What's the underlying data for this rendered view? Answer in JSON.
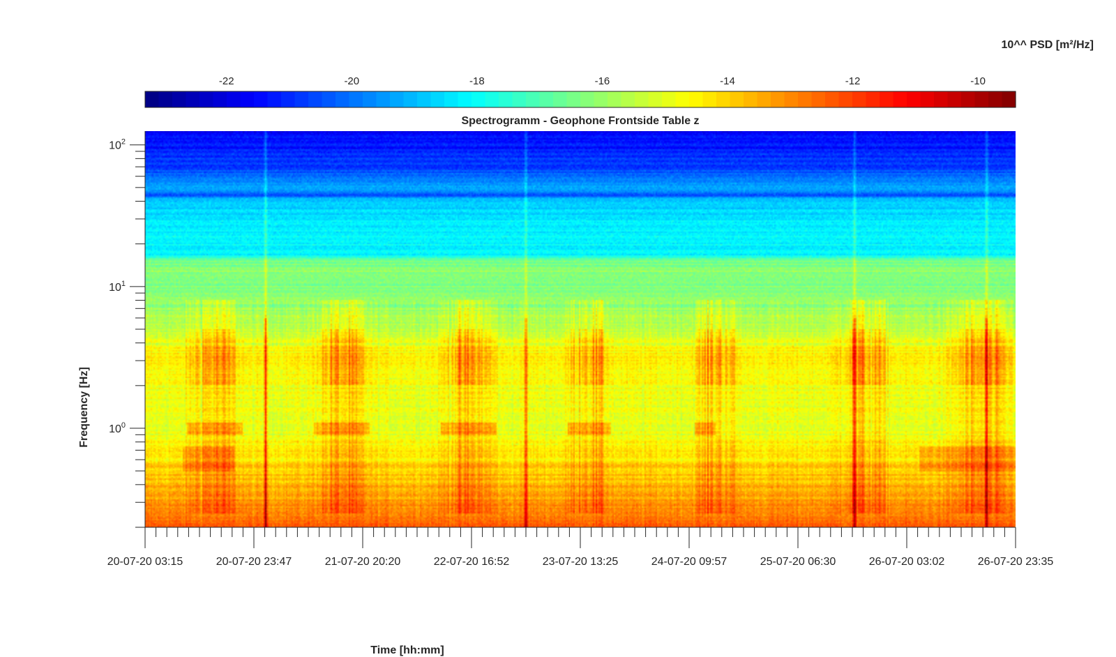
{
  "chart_data": {
    "type": "heatmap",
    "title": "Spectrogramm - Geophone Frontside Table z",
    "xlabel": "Time [hh:mm]",
    "ylabel": "Frequency [Hz]",
    "colorbar_label": "10^^ PSD [m²/Hz]",
    "colormap": "jet",
    "colorbar_range": [
      -23.3,
      -9.4
    ],
    "colorbar_ticks": [
      -22,
      -20,
      -18,
      -16,
      -14,
      -12,
      -10
    ],
    "colorbar_tick_labels": [
      "-22",
      "-20",
      "-18",
      "-16",
      "-14",
      "-12",
      "-10"
    ],
    "x_tick_labels": [
      "20-07-20 03:15",
      "20-07-20 23:47",
      "21-07-20 20:20",
      "22-07-20 16:52",
      "23-07-20 13:25",
      "24-07-20 09:57",
      "25-07-20 06:30",
      "26-07-20 03:02",
      "26-07-20 23:35"
    ],
    "y_scale": "log",
    "ylim": [
      0.2,
      125
    ],
    "y_ticks": [
      1,
      10,
      100
    ],
    "y_tick_labels": [
      {
        "base": "10",
        "exp": "0"
      },
      {
        "base": "10",
        "exp": "1"
      },
      {
        "base": "10",
        "exp": "2"
      }
    ],
    "background_profile": [
      {
        "freq": 0.2,
        "psd": -12.5
      },
      {
        "freq": 0.3,
        "psd": -13.2
      },
      {
        "freq": 0.5,
        "psd": -14.0
      },
      {
        "freq": 0.7,
        "psd": -14.4
      },
      {
        "freq": 1.0,
        "psd": -15.0
      },
      {
        "freq": 2.0,
        "psd": -14.8
      },
      {
        "freq": 3.0,
        "psd": -14.3
      },
      {
        "freq": 5.0,
        "psd": -15.4
      },
      {
        "freq": 8.0,
        "psd": -16.2
      },
      {
        "freq": 15.5,
        "psd": -16.4
      },
      {
        "freq": 16.5,
        "psd": -18.0
      },
      {
        "freq": 30.0,
        "psd": -18.5
      },
      {
        "freq": 42.0,
        "psd": -19.0
      },
      {
        "freq": 44.0,
        "psd": -20.6
      },
      {
        "freq": 48.0,
        "psd": -19.2
      },
      {
        "freq": 70.0,
        "psd": -20.8
      },
      {
        "freq": 125.0,
        "psd": -21.6
      }
    ],
    "activity_periods_days": [
      [
        0.3,
        0.8
      ],
      [
        1.3,
        1.8
      ],
      [
        2.3,
        2.8
      ],
      [
        3.3,
        3.7
      ],
      [
        4.3,
        4.7
      ],
      [
        5.4,
        5.9
      ],
      [
        6.3,
        6.9
      ]
    ],
    "impulse_events_days": [
      0.95,
      3.0,
      5.59,
      6.63
    ]
  }
}
